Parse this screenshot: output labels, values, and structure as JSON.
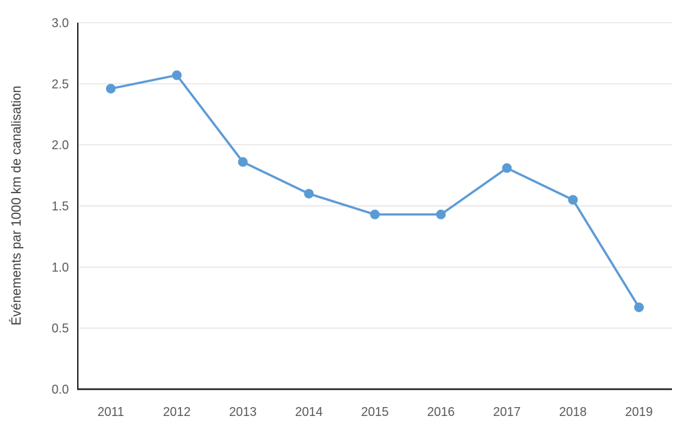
{
  "chart_data": {
    "type": "line",
    "title": "",
    "xlabel": "",
    "ylabel": "Événements par 1000 km de canalisation",
    "categories": [
      "2011",
      "2012",
      "2013",
      "2014",
      "2015",
      "2016",
      "2017",
      "2018",
      "2019"
    ],
    "values": [
      2.46,
      2.57,
      1.86,
      1.6,
      1.43,
      1.43,
      1.81,
      1.55,
      0.67
    ],
    "ylim": [
      0.0,
      3.0
    ],
    "ytick_step": 0.5,
    "ytick_labels": [
      "0.0",
      "0.5",
      "1.0",
      "1.5",
      "2.0",
      "2.5",
      "3.0"
    ],
    "grid": "horizontal",
    "legend_position": "none",
    "colors": {
      "line": "#5B9BD5",
      "marker": "#5B9BD5",
      "gridline": "#D9D9D9",
      "axis_line": "#262626",
      "tick_label": "#595959",
      "axis_title": "#404040",
      "background": "#FFFFFF"
    }
  }
}
